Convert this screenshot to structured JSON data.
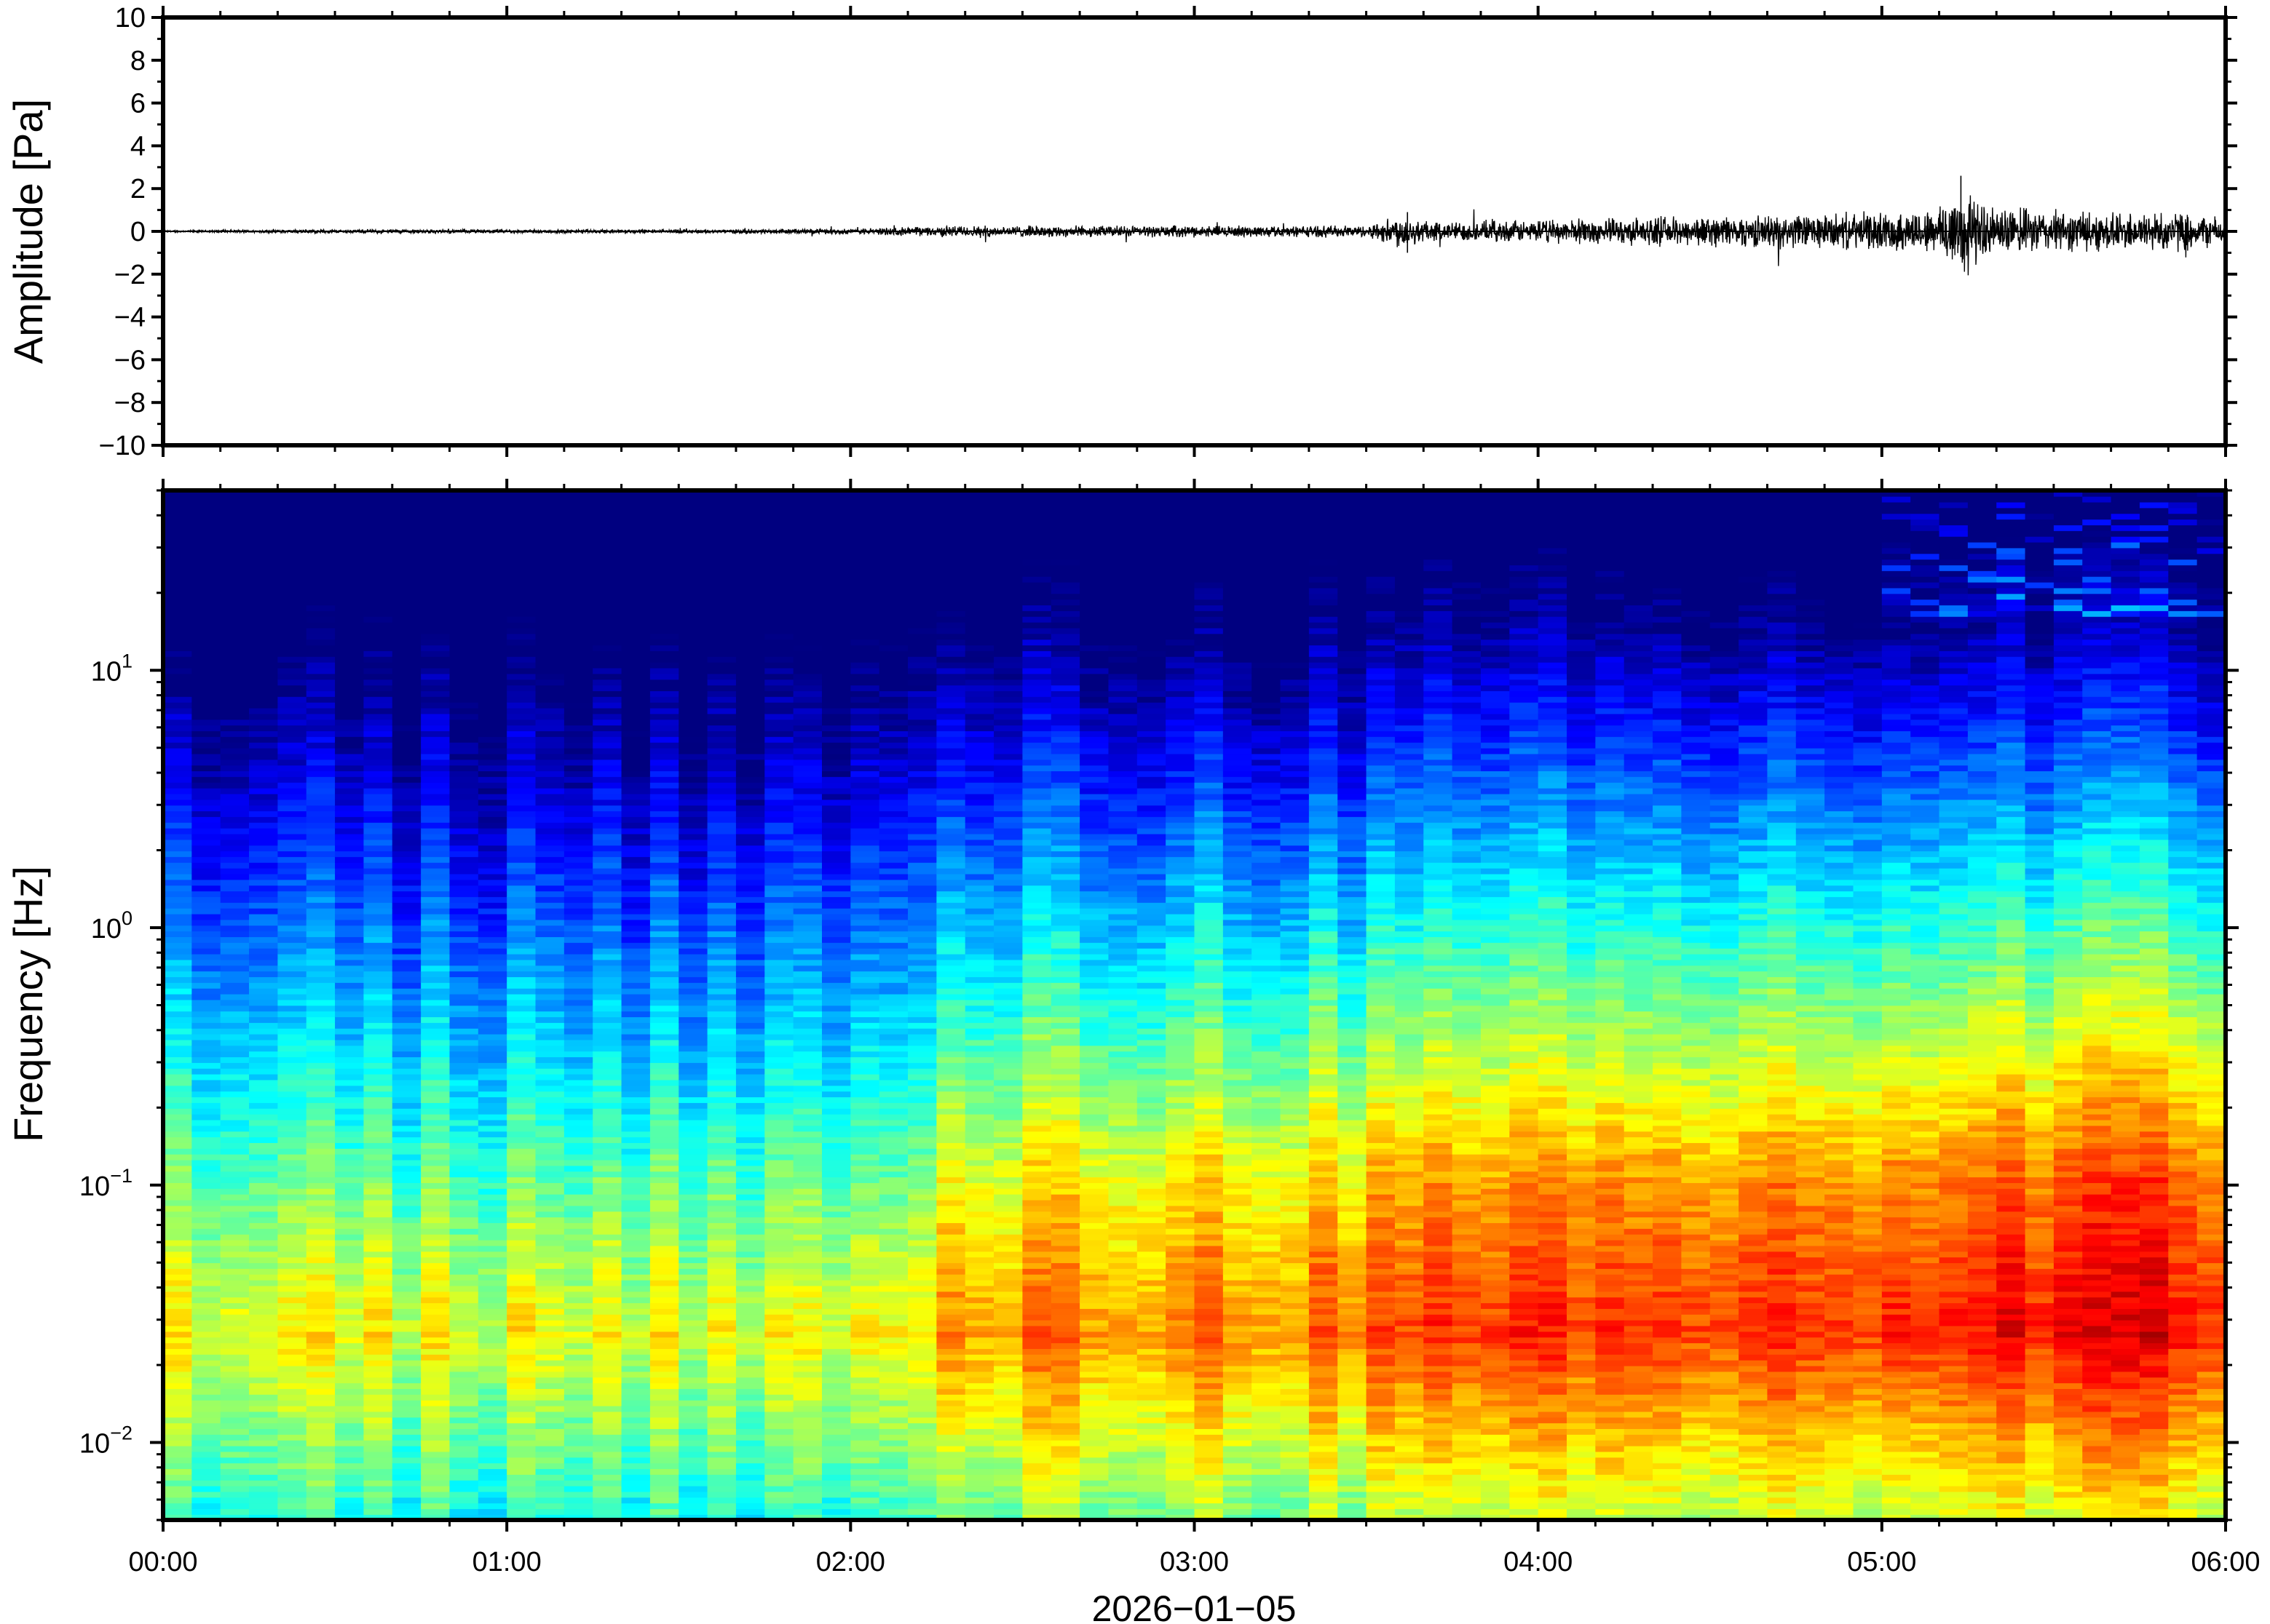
{
  "chart_data": [
    {
      "type": "line",
      "title": "",
      "xlabel": "",
      "ylabel": "Amplitude [Pa]",
      "ylim": [
        -10,
        10
      ],
      "yticks": [
        "10",
        "8",
        "6",
        "4",
        "2",
        "0",
        "−2",
        "−4",
        "−6",
        "−8",
        "−10"
      ],
      "xlim": [
        "00:00",
        "06:00"
      ],
      "grid": false,
      "series": [
        {
          "x_hours": [
            0.0,
            0.5,
            1.0,
            1.5,
            2.0,
            2.3,
            2.5,
            3.0,
            3.5,
            3.6,
            3.7,
            4.0,
            4.5,
            5.0,
            5.15,
            5.23,
            5.3,
            5.5,
            5.7,
            5.85,
            6.0
          ],
          "envelope_pa": [
            0.05,
            0.1,
            0.1,
            0.1,
            0.15,
            0.3,
            0.3,
            0.3,
            0.3,
            0.9,
            0.5,
            0.6,
            0.8,
            1.0,
            1.2,
            2.6,
            1.3,
            1.1,
            1.0,
            1.1,
            0.7
          ]
        }
      ]
    },
    {
      "type": "heatmap",
      "title": "",
      "xlabel": "2026−01−05",
      "ylabel": "Frequency [Hz]",
      "yscale": "log",
      "ylim": [
        0.005,
        50
      ],
      "yticks": [
        {
          "value": 0.01,
          "base": "10",
          "exp": "−2"
        },
        {
          "value": 0.1,
          "base": "10",
          "exp": "−1"
        },
        {
          "value": 1,
          "base": "10",
          "exp": "0"
        },
        {
          "value": 10,
          "base": "10",
          "exp": "1"
        }
      ],
      "xticks": [
        "00:00",
        "01:00",
        "02:00",
        "03:00",
        "04:00",
        "05:00",
        "06:00"
      ],
      "colormap": "jet",
      "grid": false
    }
  ],
  "spectrogram_columns": 72,
  "spectrogram_rows": 180,
  "colors": {
    "axis": "#000000",
    "trace": "#000000",
    "background": "#ffffff"
  }
}
